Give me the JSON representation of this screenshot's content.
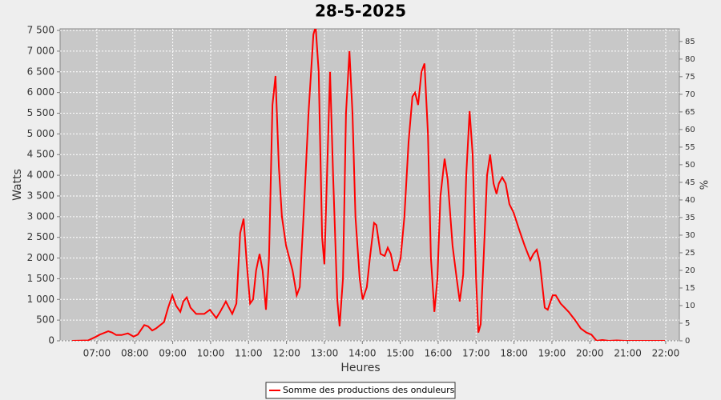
{
  "chart_data": {
    "type": "line",
    "title": "28-5-2025",
    "xlabel": "Heures",
    "ylabel": "Watts",
    "y2label": "%",
    "x": [
      6.35,
      6.77,
      6.98,
      7.08,
      7.3,
      7.4,
      7.51,
      7.65,
      7.82,
      7.97,
      8.08,
      8.25,
      8.35,
      8.46,
      8.56,
      8.77,
      8.88,
      8.99,
      9.09,
      9.2,
      9.28,
      9.37,
      9.47,
      9.62,
      9.83,
      9.98,
      10.15,
      10.25,
      10.4,
      10.57,
      10.68,
      10.78,
      10.87,
      10.95,
      11.04,
      11.12,
      11.2,
      11.29,
      11.37,
      11.46,
      11.54,
      11.63,
      11.71,
      11.8,
      11.88,
      11.99,
      12.16,
      12.27,
      12.35,
      12.45,
      12.58,
      12.71,
      12.77,
      12.85,
      12.94,
      13.0,
      13.07,
      13.15,
      13.23,
      13.34,
      13.4,
      13.49,
      13.57,
      13.66,
      13.74,
      13.82,
      13.93,
      14.01,
      14.12,
      14.2,
      14.31,
      14.37,
      14.48,
      14.59,
      14.67,
      14.75,
      14.84,
      14.92,
      15.01,
      15.11,
      15.22,
      15.32,
      15.39,
      15.47,
      15.56,
      15.64,
      15.73,
      15.81,
      15.9,
      15.98,
      16.06,
      16.17,
      16.25,
      16.38,
      16.49,
      16.57,
      16.66,
      16.74,
      16.83,
      16.91,
      17.0,
      17.06,
      17.12,
      17.2,
      17.29,
      17.37,
      17.46,
      17.54,
      17.6,
      17.69,
      17.78,
      17.88,
      17.99,
      18.13,
      18.28,
      18.43,
      18.51,
      18.6,
      18.68,
      18.81,
      18.89,
      19.02,
      19.1,
      19.23,
      19.44,
      19.61,
      19.76,
      19.91,
      20.04,
      20.18,
      20.33,
      20.5,
      20.71,
      20.92,
      21.98
    ],
    "series": [
      {
        "name": "Somme des productions des onduleurs",
        "color": "#ff0000",
        "values": [
          0,
          10,
          100,
          150,
          230,
          200,
          140,
          140,
          180,
          100,
          150,
          380,
          350,
          250,
          300,
          450,
          800,
          1100,
          850,
          700,
          950,
          1050,
          800,
          650,
          650,
          750,
          550,
          700,
          950,
          650,
          900,
          2600,
          2950,
          1900,
          900,
          1000,
          1700,
          2100,
          1700,
          750,
          2000,
          5700,
          6400,
          4200,
          3000,
          2300,
          1700,
          1100,
          1300,
          3000,
          5500,
          7400,
          7600,
          6500,
          2500,
          1850,
          4000,
          6500,
          4000,
          1000,
          350,
          1500,
          5500,
          7000,
          5500,
          3000,
          1500,
          1000,
          1300,
          2000,
          2850,
          2800,
          2100,
          2050,
          2250,
          2100,
          1700,
          1700,
          2000,
          3000,
          4800,
          5900,
          6000,
          5700,
          6500,
          6700,
          5000,
          2000,
          700,
          1500,
          3500,
          4400,
          3900,
          2300,
          1500,
          950,
          1600,
          4000,
          5550,
          4500,
          1500,
          200,
          400,
          2000,
          4000,
          4500,
          3800,
          3550,
          3800,
          3950,
          3800,
          3300,
          3100,
          2700,
          2300,
          1950,
          2100,
          2200,
          1900,
          800,
          750,
          1100,
          1100,
          900,
          700,
          500,
          300,
          200,
          150,
          0,
          20,
          0,
          10,
          0,
          0
        ]
      }
    ],
    "xlim": [
      6.03,
      22.36
    ],
    "xticks": [
      {
        "value": 7,
        "label": "07:00"
      },
      {
        "value": 8,
        "label": "08:00"
      },
      {
        "value": 9,
        "label": "09:00"
      },
      {
        "value": 10,
        "label": "10:00"
      },
      {
        "value": 11,
        "label": "11:00"
      },
      {
        "value": 12,
        "label": "12:00"
      },
      {
        "value": 13,
        "label": "13:00"
      },
      {
        "value": 14,
        "label": "14:00"
      },
      {
        "value": 15,
        "label": "15:00"
      },
      {
        "value": 16,
        "label": "16:00"
      },
      {
        "value": 17,
        "label": "17:00"
      },
      {
        "value": 18,
        "label": "18:00"
      },
      {
        "value": 19,
        "label": "19:00"
      },
      {
        "value": 20,
        "label": "20:00"
      },
      {
        "value": 21,
        "label": "21:00"
      },
      {
        "value": 22,
        "label": "22:00"
      }
    ],
    "ylim": [
      0,
      7540
    ],
    "yticks": [
      0,
      500,
      {
        "value": 1000,
        "label": "1 000"
      },
      {
        "value": 1500,
        "label": "1 500"
      },
      {
        "value": 2000,
        "label": "2 000"
      },
      {
        "value": 2500,
        "label": "2 500"
      },
      {
        "value": 3000,
        "label": "3 000"
      },
      {
        "value": 3500,
        "label": "3 500"
      },
      {
        "value": 4000,
        "label": "4 000"
      },
      {
        "value": 4500,
        "label": "4 500"
      },
      {
        "value": 5000,
        "label": "5 000"
      },
      {
        "value": 5500,
        "label": "5 500"
      },
      {
        "value": 6000,
        "label": "6 000"
      },
      {
        "value": 6500,
        "label": "6 500"
      },
      {
        "value": 7000,
        "label": "7 000"
      },
      {
        "value": 7500,
        "label": "7 500"
      }
    ],
    "y2lim": [
      0,
      88.6
    ],
    "y2ticks": [
      0,
      5,
      10,
      15,
      20,
      25,
      30,
      35,
      40,
      45,
      50,
      55,
      60,
      65,
      70,
      75,
      80,
      85
    ],
    "grid": true,
    "background": "#c8c8c8",
    "legend": "bottom"
  }
}
